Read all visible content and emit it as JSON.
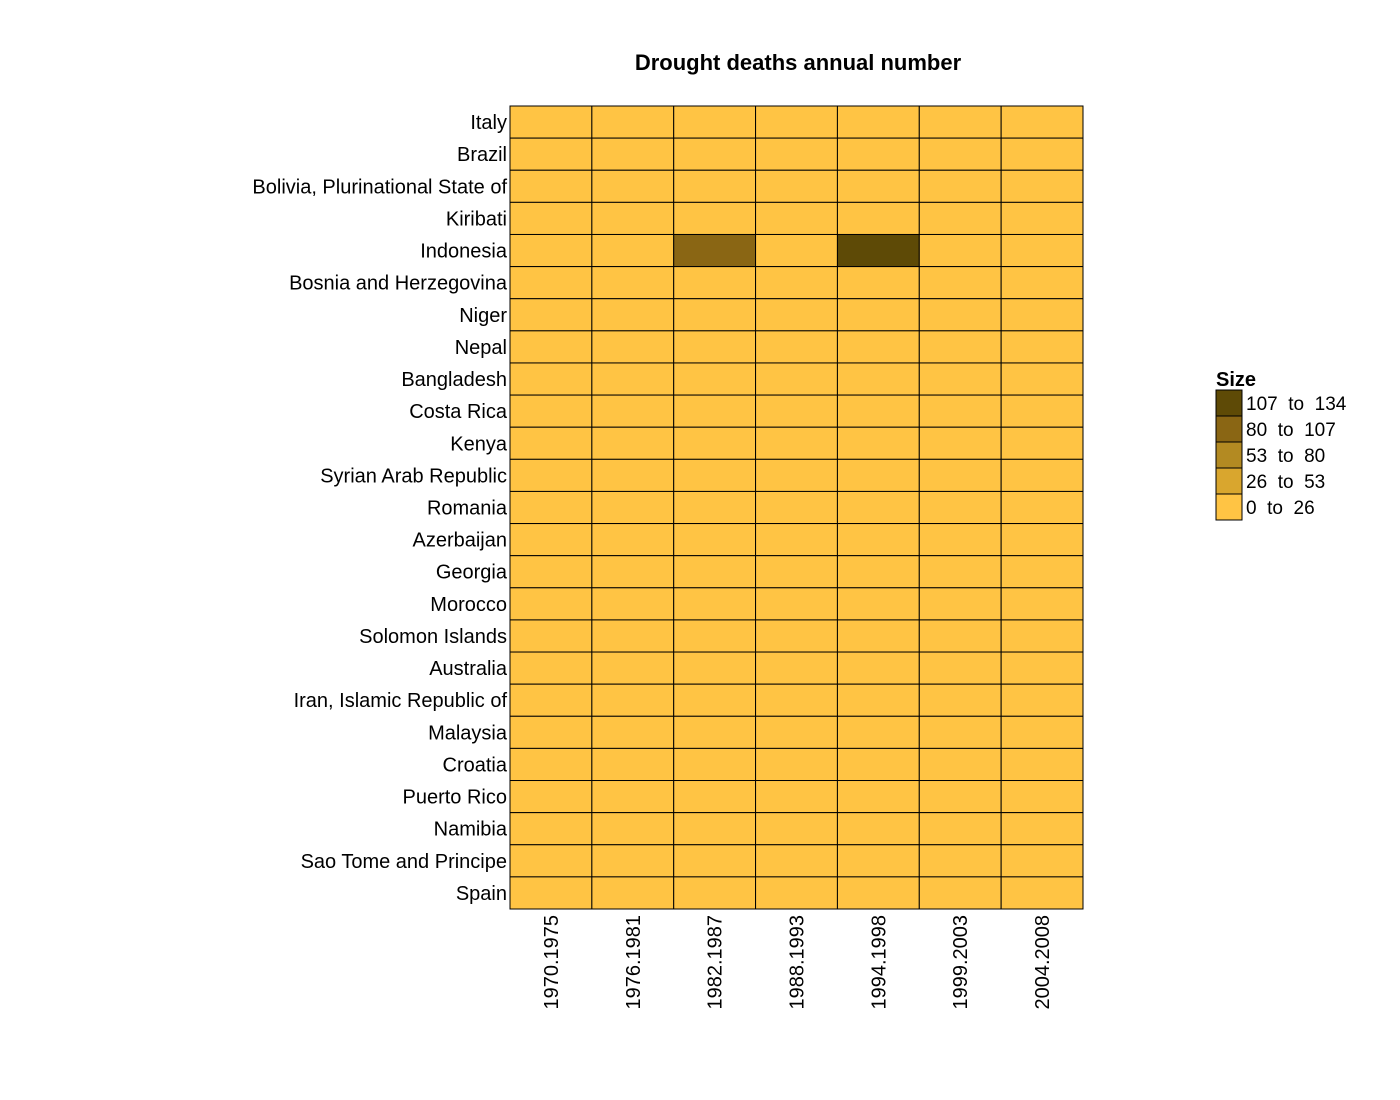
{
  "chart_data": {
    "type": "heatmap",
    "title": "Drought deaths annual number",
    "columns": [
      "1970.1975",
      "1976.1981",
      "1982.1987",
      "1988.1993",
      "1994.1998",
      "1999.2003",
      "2004.2008"
    ],
    "rows": [
      "Italy",
      "Brazil",
      "Bolivia, Plurinational State of",
      "Kiribati",
      "Indonesia",
      "Bosnia and Herzegovina",
      "Niger",
      "Nepal",
      "Bangladesh",
      "Costa Rica",
      "Kenya",
      "Syrian Arab Republic",
      "Romania",
      "Azerbaijan",
      "Georgia",
      "Morocco",
      "Solomon Islands",
      "Australia",
      "Iran, Islamic Republic of",
      "Malaysia",
      "Croatia",
      "Puerto Rico",
      "Namibia",
      "Sao Tome and Principe",
      "Spain"
    ],
    "values": [
      [
        0,
        0,
        0,
        0,
        0,
        0,
        0
      ],
      [
        0,
        0,
        0,
        0,
        0,
        0,
        0
      ],
      [
        0,
        0,
        0,
        0,
        0,
        0,
        0
      ],
      [
        0,
        0,
        0,
        0,
        0,
        0,
        0
      ],
      [
        0,
        0,
        93,
        0,
        134,
        0,
        0
      ],
      [
        0,
        0,
        0,
        0,
        0,
        0,
        0
      ],
      [
        0,
        0,
        0,
        0,
        0,
        0,
        0
      ],
      [
        0,
        0,
        0,
        0,
        0,
        0,
        0
      ],
      [
        0,
        0,
        0,
        0,
        0,
        0,
        0
      ],
      [
        0,
        0,
        0,
        0,
        0,
        0,
        0
      ],
      [
        0,
        0,
        0,
        0,
        0,
        0,
        0
      ],
      [
        0,
        0,
        0,
        0,
        0,
        0,
        0
      ],
      [
        0,
        0,
        0,
        0,
        0,
        0,
        0
      ],
      [
        0,
        0,
        0,
        0,
        0,
        0,
        0
      ],
      [
        0,
        0,
        0,
        0,
        0,
        0,
        0
      ],
      [
        0,
        0,
        0,
        0,
        0,
        0,
        0
      ],
      [
        0,
        0,
        0,
        0,
        0,
        0,
        0
      ],
      [
        0,
        0,
        0,
        0,
        0,
        0,
        0
      ],
      [
        0,
        0,
        0,
        0,
        0,
        0,
        0
      ],
      [
        0,
        0,
        0,
        0,
        0,
        0,
        0
      ],
      [
        0,
        0,
        0,
        0,
        0,
        0,
        0
      ],
      [
        0,
        0,
        0,
        0,
        0,
        0,
        0
      ],
      [
        0,
        0,
        0,
        0,
        0,
        0,
        0
      ],
      [
        0,
        0,
        0,
        0,
        0,
        0,
        0
      ],
      [
        0,
        0,
        0,
        0,
        0,
        0,
        0
      ]
    ],
    "legend": {
      "title": "Size",
      "position": "right",
      "bins": [
        {
          "label": "107  to  134",
          "min": 107,
          "max": 134,
          "color": "#5e4a06"
        },
        {
          "label": "80  to  107",
          "min": 80,
          "max": 107,
          "color": "#8a6614"
        },
        {
          "label": "53  to  80",
          "min": 53,
          "max": 80,
          "color": "#b38a22"
        },
        {
          "label": "26  to  53",
          "min": 26,
          "max": 53,
          "color": "#d9a62e"
        },
        {
          "label": "0  to  26",
          "min": 0,
          "max": 26,
          "color": "#ffc444"
        }
      ]
    },
    "grid": true,
    "cell_border_color": "#000000",
    "x_tick_rotation": "vertical"
  }
}
